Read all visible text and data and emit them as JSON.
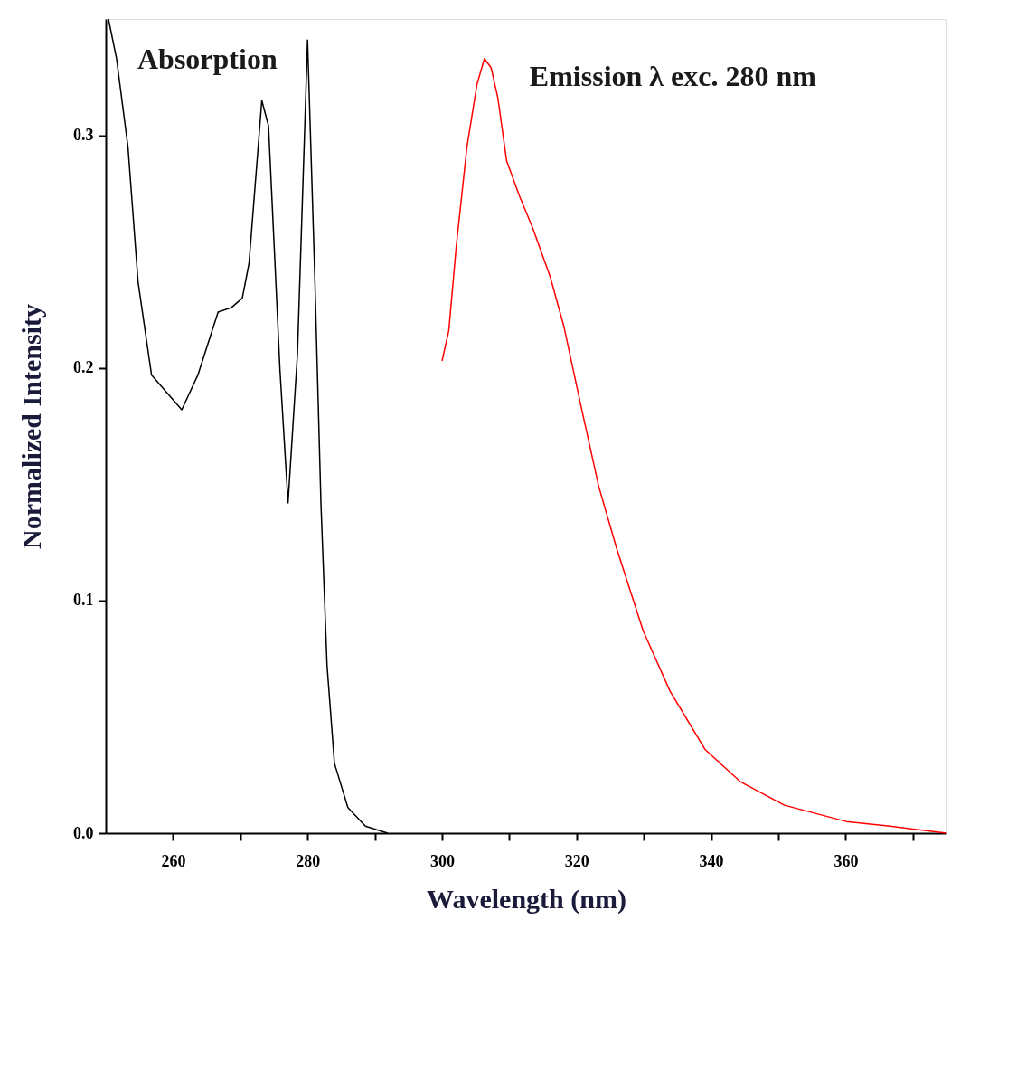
{
  "chart_data": {
    "type": "line",
    "xlabel": "Wavelength (nm)",
    "ylabel": "Normalized Intensity",
    "xlim": [
      250,
      375
    ],
    "ylim": [
      0,
      0.35
    ],
    "xticks": [
      260,
      {
        "value": 270,
        "label": null
      },
      280,
      {
        "value": 290,
        "label": null
      },
      300,
      {
        "value": 310,
        "label": null
      },
      320,
      {
        "value": 330,
        "label": null
      },
      340,
      {
        "value": 350,
        "label": null
      },
      360,
      {
        "value": 370,
        "label": null
      }
    ],
    "yticks": [
      {
        "value": 0,
        "label": "0.0"
      },
      0.1,
      0.2,
      0.3
    ],
    "grid": false,
    "marker": "none",
    "line_style": "solid",
    "series": [
      {
        "name": "Absorption",
        "color": "#000000",
        "x": [
          250.4,
          251.6,
          253.3,
          254.8,
          256.8,
          261.3,
          263.7,
          266.7,
          268.7,
          270.3,
          271.3,
          273.2,
          274.2,
          275.9,
          277.1,
          278.5,
          280.0,
          281.1,
          282.0,
          282.9,
          284.0,
          286.0,
          288.6,
          291.9
        ],
        "values": [
          0.35,
          0.333,
          0.295,
          0.237,
          0.197,
          0.182,
          0.197,
          0.224,
          0.226,
          0.23,
          0.245,
          0.315,
          0.304,
          0.199,
          0.142,
          0.206,
          0.341,
          0.237,
          0.141,
          0.072,
          0.03,
          0.011,
          0.003,
          0.0
        ]
      },
      {
        "name": "Emission λ exc. 280 nm",
        "color": "#ff0000",
        "x": [
          300.0,
          301.0,
          302.1,
          303.7,
          305.2,
          306.3,
          307.3,
          308.3,
          309.6,
          311.5,
          313.5,
          316.1,
          318.1,
          320.7,
          323.3,
          326.0,
          329.9,
          333.9,
          339.1,
          344.4,
          350.9,
          360.1,
          366.6,
          375.0
        ],
        "values": [
          0.203,
          0.216,
          0.252,
          0.295,
          0.322,
          0.333,
          0.329,
          0.316,
          0.289,
          0.274,
          0.26,
          0.239,
          0.218,
          0.183,
          0.149,
          0.122,
          0.087,
          0.061,
          0.036,
          0.022,
          0.012,
          0.005,
          0.003,
          0.0
        ]
      }
    ]
  }
}
